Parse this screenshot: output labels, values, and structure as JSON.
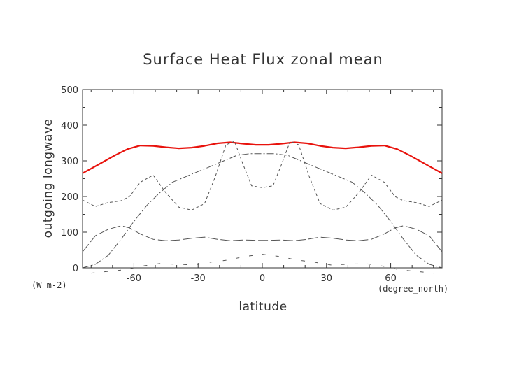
{
  "chart_data": {
    "type": "line",
    "title": "Surface Heat Flux zonal mean",
    "xlabel": "latitude",
    "ylabel": "outgoing longwave",
    "x_unit": "(degree_north)",
    "y_unit": "(W m-2)",
    "xlim": [
      -84,
      84
    ],
    "ylim": [
      0,
      500
    ],
    "xticks": [
      -60,
      -30,
      0,
      30,
      60
    ],
    "xtick_labels": [
      "-60",
      "-30",
      "0",
      "30",
      "60"
    ],
    "yticks": [
      0,
      100,
      200,
      300,
      400,
      500
    ],
    "ytick_labels": [
      "0",
      "100",
      "200",
      "300",
      "400",
      "500"
    ],
    "grid": false,
    "series": [
      {
        "style": "solid",
        "color": "#e8120c",
        "x": [
          -84,
          -75,
          -69,
          -63,
          -57,
          -51,
          -45,
          -39,
          -33,
          -27,
          -21,
          -15,
          -9,
          -3,
          3,
          9,
          15,
          21,
          27,
          33,
          39,
          45,
          51,
          57,
          63,
          69,
          75,
          84
        ],
        "y": [
          265,
          295,
          315,
          333,
          343,
          342,
          338,
          335,
          337,
          342,
          349,
          352,
          348,
          345,
          345,
          348,
          352,
          349,
          342,
          337,
          335,
          338,
          342,
          343,
          333,
          315,
          295,
          265
        ]
      },
      {
        "style": "dashed",
        "color": "#555555",
        "x": [
          -84,
          -78,
          -72,
          -66,
          -62,
          -57,
          -51,
          -45,
          -39,
          -33,
          -27,
          -22,
          -17,
          -13,
          -9,
          -5,
          0,
          5,
          9,
          13,
          17,
          22,
          27,
          33,
          39,
          45,
          51,
          57,
          62,
          66,
          72,
          78,
          84
        ],
        "y": [
          190,
          172,
          183,
          188,
          200,
          240,
          260,
          210,
          170,
          162,
          180,
          255,
          345,
          355,
          290,
          230,
          225,
          230,
          290,
          355,
          345,
          255,
          180,
          162,
          170,
          210,
          260,
          240,
          200,
          188,
          183,
          172,
          190
        ]
      },
      {
        "style": "dashdot",
        "color": "#555555",
        "x": [
          -84,
          -78,
          -72,
          -66,
          -60,
          -54,
          -48,
          -42,
          -36,
          -30,
          -24,
          -18,
          -12,
          -6,
          0,
          6,
          12,
          18,
          24,
          30,
          36,
          42,
          48,
          54,
          60,
          66,
          72,
          78,
          84
        ],
        "y": [
          0,
          10,
          35,
          80,
          130,
          175,
          210,
          240,
          255,
          270,
          285,
          300,
          315,
          320,
          320,
          320,
          315,
          300,
          285,
          270,
          255,
          240,
          210,
          175,
          130,
          80,
          35,
          10,
          0
        ]
      },
      {
        "style": "longdash",
        "color": "#555555",
        "x": [
          -84,
          -78,
          -72,
          -66,
          -62,
          -57,
          -51,
          -45,
          -39,
          -33,
          -27,
          -21,
          -15,
          -9,
          -3,
          3,
          9,
          15,
          21,
          27,
          33,
          39,
          45,
          51,
          57,
          62,
          66,
          72,
          78,
          84
        ],
        "y": [
          45,
          90,
          108,
          118,
          112,
          95,
          80,
          76,
          78,
          83,
          86,
          80,
          76,
          78,
          77,
          77,
          78,
          76,
          80,
          86,
          83,
          78,
          76,
          80,
          95,
          112,
          118,
          108,
          90,
          45
        ]
      },
      {
        "style": "sparse-dash",
        "color": "#555555",
        "x": [
          -80,
          -72,
          -64,
          -56,
          -48,
          -40,
          -32,
          -24,
          -16,
          -8,
          0,
          8,
          16,
          24,
          32,
          40,
          48,
          56,
          64,
          72,
          80
        ],
        "y": [
          -15,
          -10,
          -5,
          5,
          12,
          10,
          8,
          16,
          22,
          32,
          38,
          32,
          22,
          16,
          8,
          10,
          12,
          5,
          -5,
          -10,
          -15
        ]
      }
    ]
  }
}
